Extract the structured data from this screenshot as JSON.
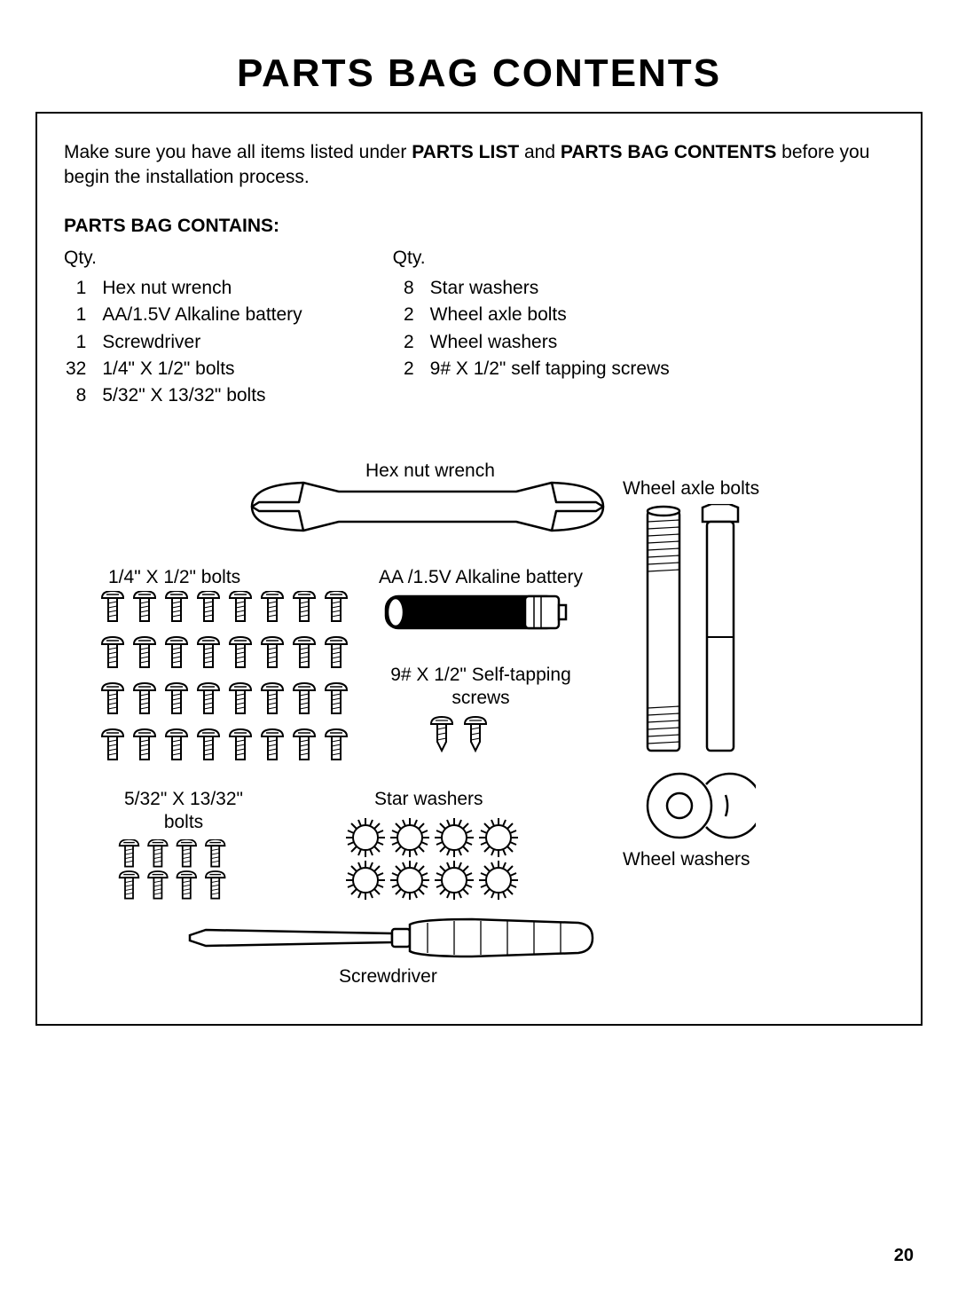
{
  "title": "PARTS BAG CONTENTS",
  "intro_prefix": "Make sure you have all items listed under ",
  "intro_bold1": "PARTS LIST",
  "intro_mid": " and ",
  "intro_bold2": "PARTS BAG CONTENTS",
  "intro_suffix": " before you begin the installation process.",
  "sub_heading": "PARTS BAG CONTAINS:",
  "qty_label": "Qty.",
  "left_list": [
    {
      "qty": "1",
      "name": "Hex nut wrench"
    },
    {
      "qty": "1",
      "name": "AA/1.5V Alkaline battery"
    },
    {
      "qty": "1",
      "name": "Screwdriver"
    },
    {
      "qty": "32",
      "name": "1/4\" X 1/2\" bolts"
    },
    {
      "qty": "8",
      "name": "5/32\" X 13/32\" bolts"
    }
  ],
  "right_list": [
    {
      "qty": "8",
      "name": "Star washers"
    },
    {
      "qty": "2",
      "name": "Wheel axle bolts"
    },
    {
      "qty": "2",
      "name": "Wheel washers"
    },
    {
      "qty": "2",
      "name": "9# X 1/2\" self tapping screws"
    }
  ],
  "labels": {
    "hex_wrench": "Hex nut wrench",
    "wheel_axle_bolts": "Wheel axle bolts",
    "quarter_bolts": "1/4\" X 1/2\" bolts",
    "battery": "AA /1.5V Alkaline battery",
    "self_tapping": "9# X 1/2\" Self-tapping screws",
    "small_bolts": "5/32\" X 13/32\" bolts",
    "star_washers": "Star washers",
    "wheel_washers": "Wheel washers",
    "screwdriver": "Screwdriver"
  },
  "page_number": "20",
  "colors": {
    "text": "#000000",
    "bg": "#ffffff",
    "stroke": "#000000"
  },
  "stroke_width": 2.5
}
